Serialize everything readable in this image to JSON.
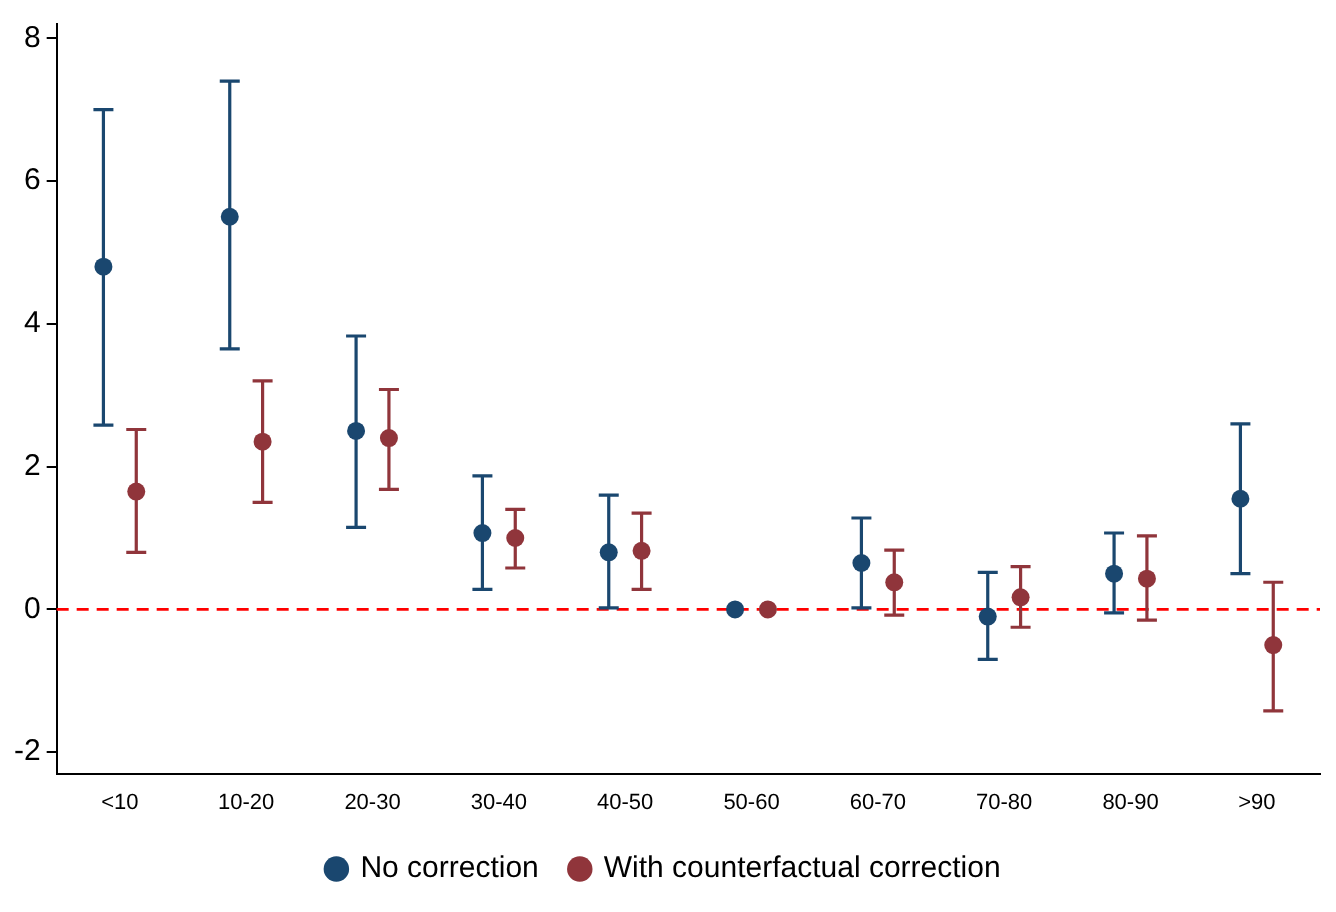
{
  "chart_data": {
    "type": "scatter",
    "categories": [
      "<10",
      "10-20",
      "20-30",
      "30-40",
      "40-50",
      "50-60",
      "60-70",
      "70-80",
      "80-90",
      ">90"
    ],
    "series": [
      {
        "name": "No correction",
        "color": "#1a476f",
        "values": [
          4.8,
          5.5,
          2.5,
          1.07,
          0.8,
          0,
          0.65,
          -0.1,
          0.5,
          1.55
        ],
        "errors": [
          [
            2.58,
            7.0
          ],
          [
            3.65,
            7.4
          ],
          [
            1.15,
            3.83
          ],
          [
            0.28,
            1.87
          ],
          [
            0.02,
            1.6
          ],
          null,
          [
            0.02,
            1.28
          ],
          [
            -0.7,
            0.52
          ],
          [
            -0.05,
            1.07
          ],
          [
            0.5,
            2.6
          ]
        ]
      },
      {
        "name": "With counterfactual correction",
        "color": "#90353b",
        "values": [
          1.65,
          2.35,
          2.4,
          1.0,
          0.82,
          0,
          0.38,
          0.17,
          0.43,
          -0.5
        ],
        "errors": [
          [
            0.8,
            2.52
          ],
          [
            1.5,
            3.2
          ],
          [
            1.68,
            3.08
          ],
          [
            0.58,
            1.4
          ],
          [
            0.28,
            1.35
          ],
          null,
          [
            -0.08,
            0.83
          ],
          [
            -0.25,
            0.6
          ],
          [
            -0.15,
            1.03
          ],
          [
            -1.42,
            0.38
          ]
        ]
      }
    ],
    "ylim": [
      -2.3,
      8.2
    ],
    "yticks": [
      -2,
      0,
      2,
      4,
      6,
      8
    ],
    "grid": false,
    "legend": "bottom",
    "marker": "circle",
    "ref_lines": [
      {
        "axis": "y",
        "value": 0,
        "color": "#ff0000",
        "line_style": "dashed"
      }
    ]
  }
}
